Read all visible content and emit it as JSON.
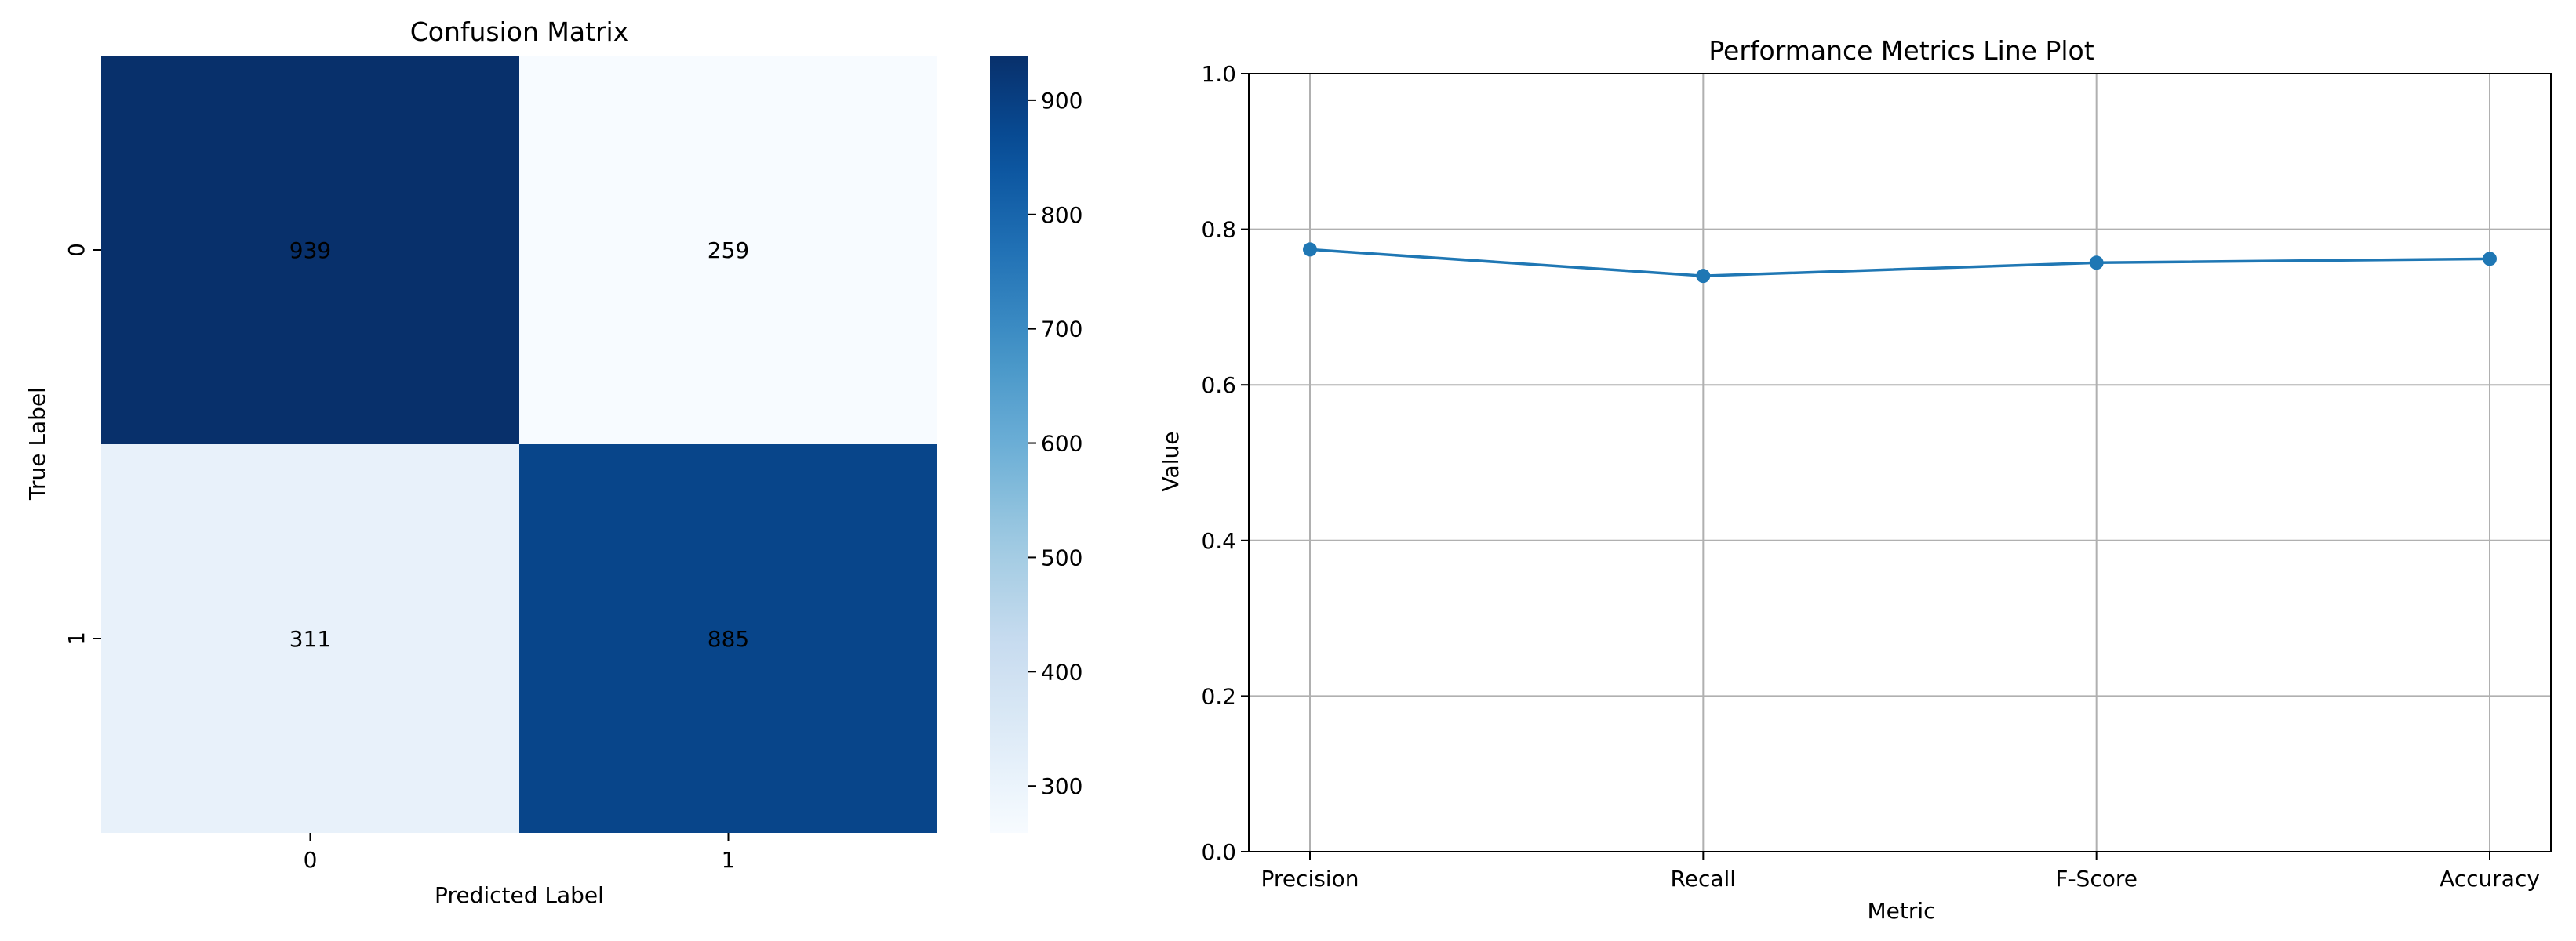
{
  "chart_data": [
    {
      "type": "heatmap",
      "title": "Confusion Matrix",
      "xlabel": "Predicted Label",
      "ylabel": "True Label",
      "x_categories": [
        "0",
        "1"
      ],
      "y_categories": [
        "0",
        "1"
      ],
      "values": [
        [
          939,
          259
        ],
        [
          311,
          885
        ]
      ],
      "colormap": "Blues",
      "colorbar": {
        "ticks": [
          300,
          400,
          500,
          600,
          700,
          800,
          900
        ],
        "range": [
          259,
          939
        ]
      }
    },
    {
      "type": "line",
      "title": "Performance Metrics Line Plot",
      "xlabel": "Metric",
      "ylabel": "Value",
      "categories": [
        "Precision",
        "Recall",
        "F-Score",
        "Accuracy"
      ],
      "values": [
        0.774,
        0.74,
        0.757,
        0.762
      ],
      "ylim": [
        0,
        1.0
      ],
      "yticks": [
        "0.0",
        "0.2",
        "0.4",
        "0.6",
        "0.8",
        "1.0"
      ],
      "grid": true,
      "color": "#1f77b4",
      "marker": "circle"
    }
  ]
}
